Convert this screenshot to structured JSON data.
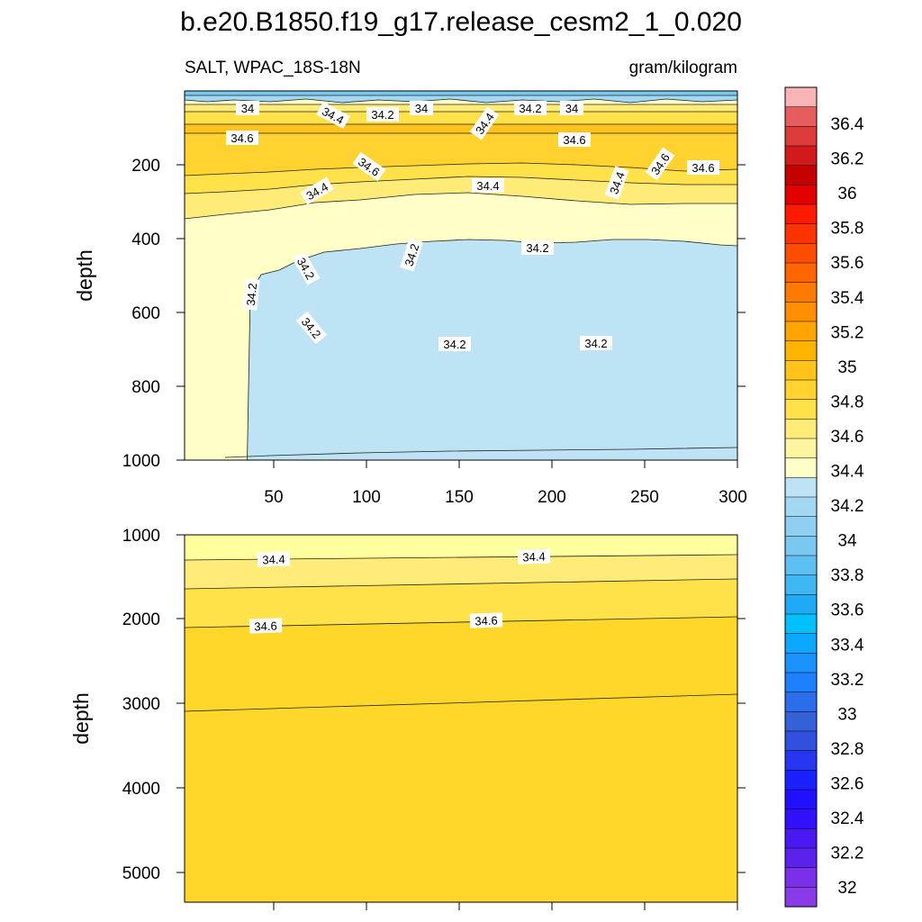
{
  "title": "b.e20.B1850.f19_g17.release_cesm2_1_0.020",
  "left_subtitle": "SALT, WPAC_18S-18N",
  "right_subtitle": "gram/kilogram",
  "colorbar": {
    "labels": [
      "36.4",
      "36.2",
      "36",
      "35.8",
      "35.6",
      "35.4",
      "35.2",
      "35",
      "34.8",
      "34.6",
      "34.4",
      "34.2",
      "34",
      "33.8",
      "33.6",
      "33.4",
      "33.2",
      "33",
      "32.8",
      "32.6",
      "32.4",
      "32.2",
      "32"
    ],
    "colors": [
      "#f8b4b4",
      "#e65d5d",
      "#de3b3b",
      "#d21a1a",
      "#c40000",
      "#e20000",
      "#ff1a00",
      "#ff3300",
      "#ff4d00",
      "#ff6600",
      "#ff7a00",
      "#ff8f00",
      "#ffa400",
      "#ffb400",
      "#ffc31a",
      "#ffd230",
      "#ffe14a",
      "#ffeb78",
      "#fff4a0",
      "#ffffc8",
      "#bde3f5",
      "#a3d8f2",
      "#8fcfef",
      "#78c8f0",
      "#5ec0f2",
      "#40b6f3",
      "#1eaaf5",
      "#00c0ff",
      "#0aa8ff",
      "#1a92ff",
      "#1e80ff",
      "#2a6eec",
      "#3460d8",
      "#3050e0",
      "#2535f0",
      "#1a20ff",
      "#2010ff",
      "#3010ff",
      "#4a18f0",
      "#5a22ea",
      "#7a30e8",
      "#8a3ae8"
    ]
  },
  "chart_data": [
    {
      "type": "contour",
      "panel": "upper",
      "variable": "SALT",
      "region": "WPAC_18S-18N",
      "units": "gram/kilogram",
      "ylabel": "depth",
      "xlabel": "",
      "xlim": [
        1,
        300
      ],
      "ylim": [
        1000,
        0
      ],
      "x_ticks": [
        "50",
        "100",
        "150",
        "200",
        "250",
        "300"
      ],
      "y_ticks": [
        "200",
        "400",
        "600",
        "800",
        "1000"
      ],
      "grid": false,
      "contour_labels": [
        "34",
        "34.4",
        "34.2",
        "34",
        "34.4",
        "34.2",
        "34",
        "34.6",
        "34.6",
        "34.6",
        "34.6",
        "34.4",
        "34.4",
        "34.4",
        "34.6",
        "34.2",
        "34.2",
        "34.2",
        "34.2",
        "34.2",
        "34.2",
        "34.2"
      ],
      "layers": [
        {
          "value_range": [
            33.6,
            34.0
          ],
          "depth_range": [
            0,
            30
          ]
        },
        {
          "value_range": [
            34.0,
            34.6
          ],
          "depth_range": [
            30,
            100
          ]
        },
        {
          "value_range": [
            34.6,
            34.8
          ],
          "depth_range": [
            100,
            250
          ]
        },
        {
          "value_range": [
            34.2,
            34.6
          ],
          "depth_range": [
            250,
            350
          ]
        },
        {
          "value_range": [
            34.0,
            34.2
          ],
          "depth_range": [
            400,
            680
          ],
          "x_range": [
            25,
            300
          ]
        },
        {
          "value_range": [
            34.2,
            34.4
          ],
          "depth_range": [
            350,
            1000
          ]
        }
      ]
    },
    {
      "type": "contour",
      "panel": "lower",
      "ylabel": "depth",
      "xlabel": "",
      "xlim": [
        1,
        300
      ],
      "ylim": [
        5350,
        1000
      ],
      "y_ticks": [
        "1000",
        "2000",
        "3000",
        "4000",
        "5000"
      ],
      "grid": false,
      "contour_labels": [
        "34.4",
        "34.4",
        "34.6",
        "34.6"
      ],
      "contours": [
        {
          "value": 34.4,
          "depth_left": 1300,
          "depth_right": 1230
        },
        {
          "value": 34.5,
          "depth_left": 1650,
          "depth_right": 1550
        },
        {
          "value": 34.6,
          "depth_left": 2100,
          "depth_right": 1950
        },
        {
          "value": 34.7,
          "depth_left": 3100,
          "depth_right": 2900
        }
      ]
    }
  ]
}
